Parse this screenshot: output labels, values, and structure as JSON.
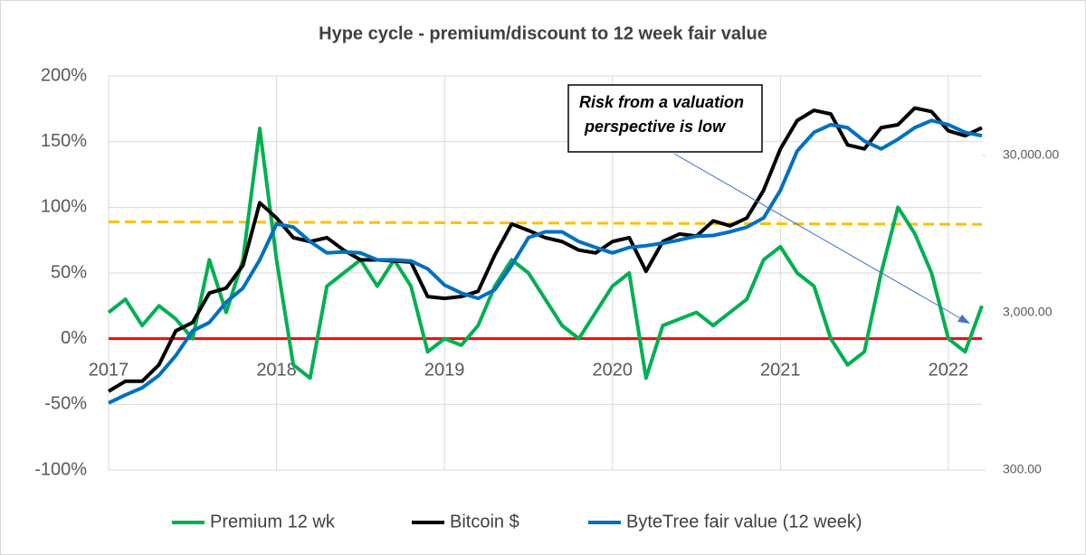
{
  "chart_data": {
    "type": "line",
    "title": "Hype cycle - premium/discount to 12 week fair value",
    "annotation": [
      "Risk from a valuation",
      "perspective is low"
    ],
    "x": [
      2017.0,
      2017.1,
      2017.2,
      2017.3,
      2017.4,
      2017.5,
      2017.6,
      2017.7,
      2017.8,
      2017.9,
      2018.0,
      2018.1,
      2018.2,
      2018.3,
      2018.4,
      2018.5,
      2018.6,
      2018.7,
      2018.8,
      2018.9,
      2019.0,
      2019.1,
      2019.2,
      2019.3,
      2019.4,
      2019.5,
      2019.6,
      2019.7,
      2019.8,
      2019.9,
      2020.0,
      2020.1,
      2020.2,
      2020.3,
      2020.4,
      2020.5,
      2020.6,
      2020.7,
      2020.8,
      2020.9,
      2021.0,
      2021.1,
      2021.2,
      2021.3,
      2021.4,
      2021.5,
      2021.6,
      2021.7,
      2021.8,
      2021.9,
      2022.0,
      2022.1,
      2022.2
    ],
    "xlim": [
      2017,
      2022.2
    ],
    "xticks": [
      2017,
      2018,
      2019,
      2020,
      2021,
      2022
    ],
    "ylim": [
      -100,
      200
    ],
    "yticks": [
      {
        "value": -100,
        "label": "-100%"
      },
      {
        "value": -50,
        "label": "-50%"
      },
      {
        "value": 0,
        "label": "0%"
      },
      {
        "value": 50,
        "label": "50%"
      },
      {
        "value": 100,
        "label": "100%"
      },
      {
        "value": 150,
        "label": "150%"
      },
      {
        "value": 200,
        "label": "200%"
      }
    ],
    "y2lim": [
      300,
      96000
    ],
    "y2log": true,
    "y2ticks": [
      {
        "value": 300,
        "label": "300.00"
      },
      {
        "value": 3000,
        "label": "3,000.00"
      },
      {
        "value": 30000,
        "label": "30,000.00"
      }
    ],
    "grid": true,
    "legend": "bottom",
    "series": [
      {
        "name": "Premium 12 wk",
        "color": "#00b050",
        "values": [
          20,
          30,
          10,
          25,
          15,
          0,
          60,
          20,
          60,
          160,
          60,
          -20,
          -30,
          40,
          50,
          60,
          40,
          60,
          40,
          -10,
          0,
          -5,
          10,
          40,
          60,
          50,
          30,
          10,
          0,
          20,
          40,
          50,
          -30,
          10,
          15,
          20,
          10,
          20,
          30,
          60,
          70,
          50,
          40,
          0,
          -20,
          -10,
          50,
          100,
          80,
          50,
          0,
          -10,
          25
        ]
      },
      {
        "name": "Bitcoin $",
        "color": "#000000",
        "axis": "y2",
        "values": [
          950,
          1100,
          1100,
          1400,
          2300,
          2600,
          4000,
          4300,
          6000,
          15000,
          12000,
          9000,
          8500,
          9000,
          7500,
          6500,
          6500,
          6400,
          6300,
          3800,
          3700,
          3800,
          4100,
          7000,
          11000,
          10000,
          9000,
          8500,
          7500,
          7200,
          8500,
          9000,
          5500,
          8500,
          9500,
          9200,
          11500,
          10700,
          12000,
          18000,
          33000,
          50000,
          58000,
          55000,
          35000,
          33000,
          45000,
          47000,
          60000,
          57000,
          43000,
          40000,
          45000
        ]
      },
      {
        "name": "ByteTree fair value (12 week)",
        "color": "#0070c0",
        "axis": "y2",
        "values": [
          800,
          900,
          1000,
          1200,
          1600,
          2300,
          2600,
          3500,
          4300,
          6500,
          11000,
          10500,
          8500,
          7200,
          7300,
          7200,
          6500,
          6500,
          6400,
          5700,
          4500,
          4000,
          3700,
          4200,
          6000,
          9000,
          9800,
          9800,
          8500,
          7800,
          7200,
          7800,
          8000,
          8300,
          8700,
          9200,
          9300,
          9800,
          10500,
          12000,
          18000,
          32000,
          42000,
          47000,
          45000,
          37000,
          33000,
          38000,
          45000,
          50000,
          47000,
          42000,
          40000
        ]
      }
    ],
    "hlines": [
      {
        "values": [
          89,
          87
        ],
        "color": "#ffc000",
        "dash": true
      },
      {
        "values": [
          0,
          0
        ],
        "color": "#ff0000",
        "dash": false
      }
    ]
  }
}
